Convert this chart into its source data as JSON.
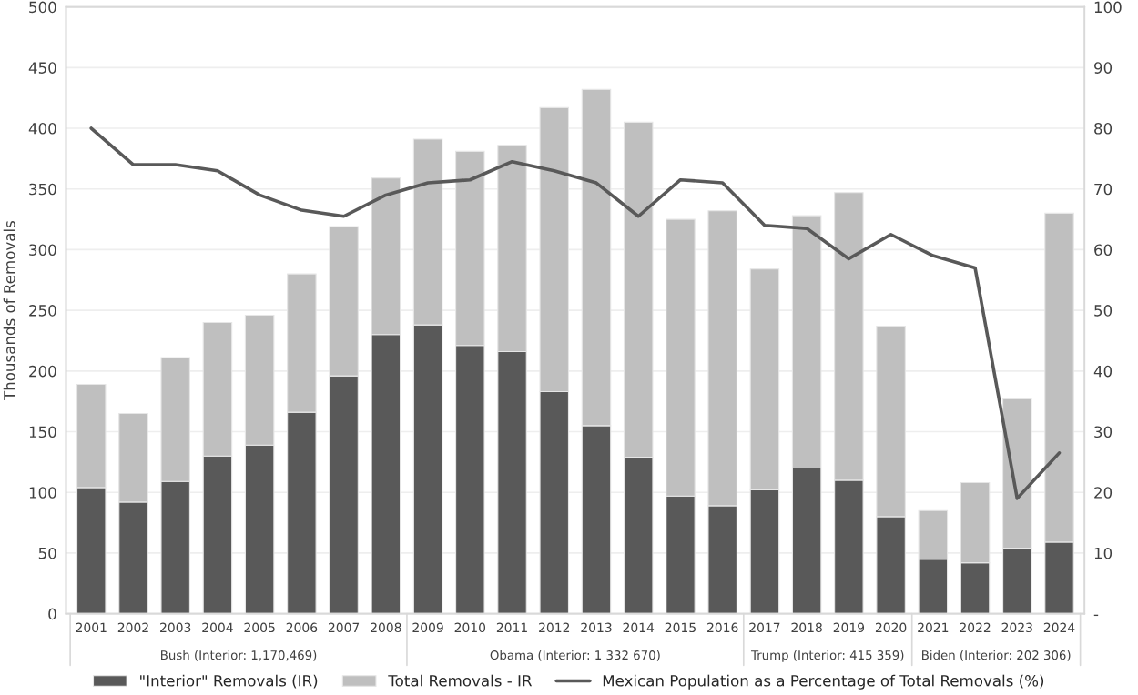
{
  "chart_data": {
    "type": "bar",
    "stacked": true,
    "ylabel": "Thousands of Removals",
    "categories": [
      "2001",
      "2002",
      "2003",
      "2004",
      "2005",
      "2006",
      "2007",
      "2008",
      "2009",
      "2010",
      "2011",
      "2012",
      "2013",
      "2014",
      "2015",
      "2016",
      "2017",
      "2018",
      "2019",
      "2020",
      "2021",
      "2022",
      "2023",
      "2024"
    ],
    "series": [
      {
        "name": "\"Interior\" Removals (IR)",
        "color": "#595959",
        "values": [
          104,
          92,
          109,
          130,
          139,
          166,
          196,
          230,
          238,
          221,
          216,
          183,
          155,
          129,
          97,
          89,
          102,
          120,
          110,
          80,
          45,
          42,
          54,
          59
        ]
      },
      {
        "name": "Total Removals - IR",
        "color": "#bfbfbf",
        "values": [
          85,
          73,
          102,
          110,
          107,
          114,
          123,
          129,
          153,
          160,
          170,
          234,
          277,
          276,
          228,
          243,
          182,
          208,
          237,
          157,
          40,
          66,
          123,
          271
        ]
      },
      {
        "name": "Mexican Population as a Percentage of Total Removals (%)",
        "type": "line",
        "axis": "y2",
        "color": "#595959",
        "values": [
          80,
          74,
          74,
          73,
          69,
          66.5,
          65.5,
          69,
          71,
          71.5,
          74.5,
          73,
          71,
          65.5,
          71.5,
          71,
          64,
          63.5,
          58.5,
          62.5,
          59,
          57,
          19,
          26.5
        ]
      }
    ],
    "ylim": [
      0,
      500
    ],
    "yticks": [
      0,
      50,
      100,
      150,
      200,
      250,
      300,
      350,
      400,
      450,
      500
    ],
    "y2lim": [
      0,
      100
    ],
    "y2ticks": [
      {
        "value": 0,
        "label": "-"
      },
      10,
      20,
      30,
      40,
      50,
      60,
      70,
      80,
      90,
      100
    ],
    "annotations": [
      "Bush (Interior: 1,170,469)",
      "Obama (Interior: 1 332 670)",
      "Trump (Interior: 415 359)",
      "Biden (Interior: 202 306)"
    ],
    "grid": "y",
    "legend": "bottom",
    "line_style": "solid",
    "marker": "none"
  }
}
